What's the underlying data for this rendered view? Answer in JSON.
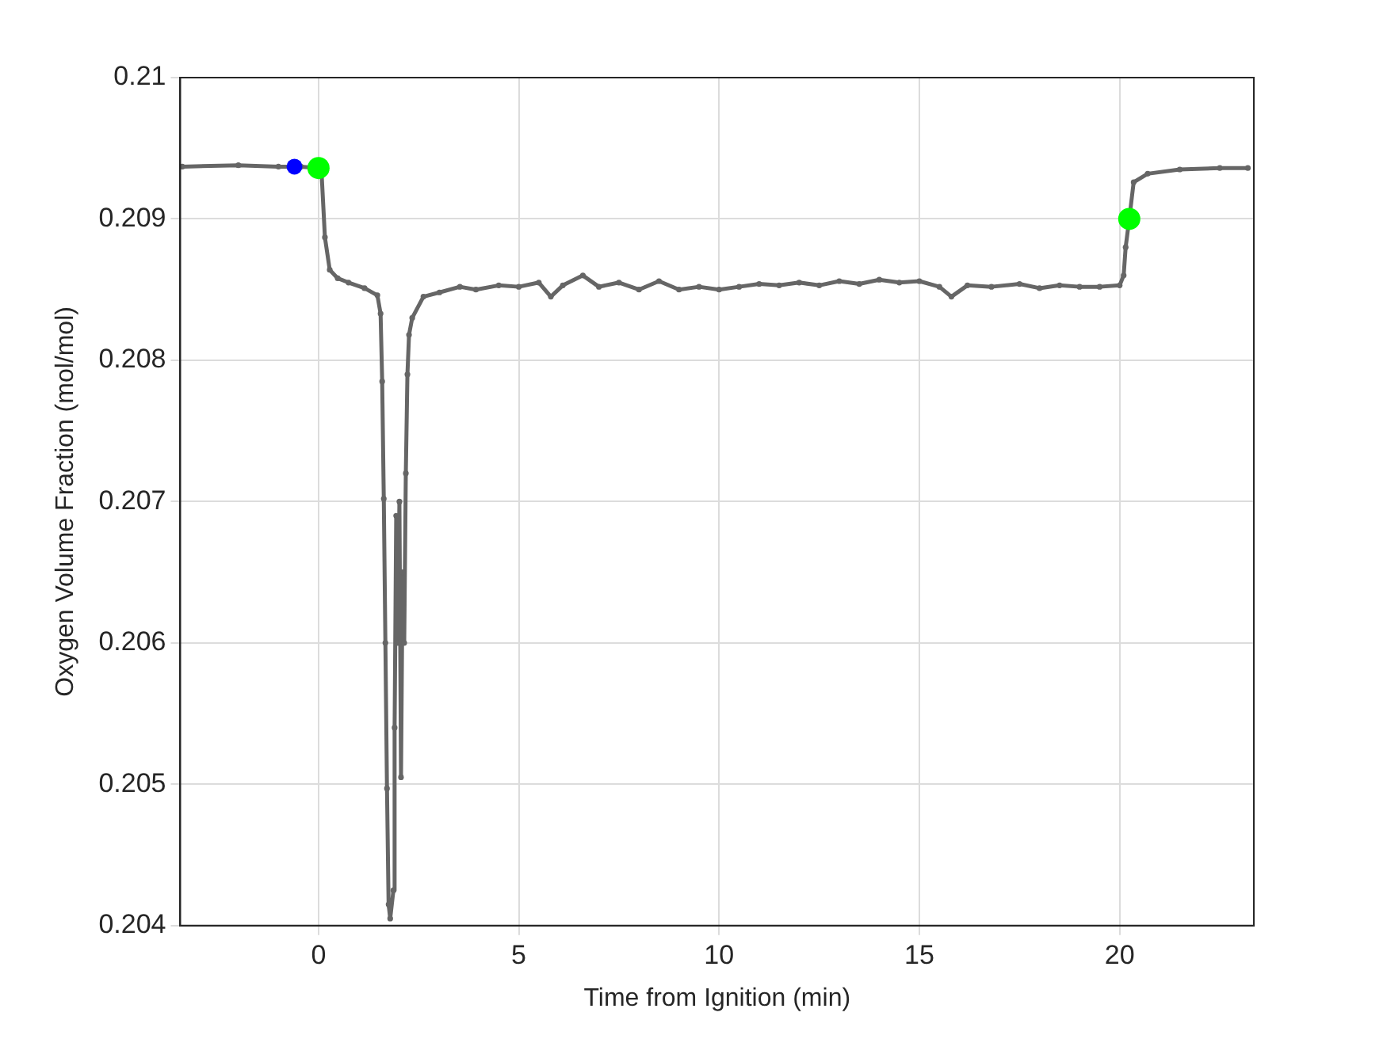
{
  "chart_data": {
    "type": "line",
    "xlabel": "Time from Ignition (min)",
    "ylabel": "Oxygen Volume Fraction (mol/mol)",
    "xlim": [
      -3.45,
      23.35
    ],
    "xticks": [
      0,
      5,
      10,
      15,
      20
    ],
    "ylim": [
      0.204,
      0.21
    ],
    "yticks": [
      0.204,
      0.205,
      0.206,
      0.207,
      0.208,
      0.209,
      0.21
    ],
    "grid": true,
    "legend": false,
    "marker": "circle",
    "line_style": "solid",
    "series": [
      {
        "type": "line",
        "color": "#666666",
        "x": [
          -3.4,
          -2.0,
          -1.0,
          -0.44,
          0,
          0.08,
          0.16,
          0.28,
          0.48,
          0.75,
          1.15,
          1.47,
          1.55,
          1.59,
          1.63,
          1.67,
          1.71,
          1.75,
          1.79,
          1.87,
          1.9,
          1.94,
          1.98,
          2.02,
          2.06,
          2.1,
          2.14,
          2.18,
          2.22,
          2.26,
          2.34,
          2.62,
          3.02,
          3.53,
          3.93,
          4.5,
          5.0,
          5.5,
          5.8,
          6.1,
          6.6,
          7.0,
          7.5,
          8.0,
          8.5,
          9.0,
          9.5,
          10.0,
          10.5,
          11.0,
          11.5,
          12.0,
          12.5,
          13.0,
          13.5,
          14.0,
          14.5,
          15.0,
          15.5,
          15.8,
          16.2,
          16.8,
          17.5,
          18.0,
          18.5,
          19.0,
          19.5,
          20.0,
          20.1,
          20.15,
          20.24,
          20.35,
          20.7,
          21.5,
          22.5,
          23.2
        ],
        "values": [
          0.20937,
          0.20938,
          0.20937,
          0.20937,
          0.20936,
          0.20931,
          0.20887,
          0.20864,
          0.20858,
          0.20855,
          0.20851,
          0.20846,
          0.20833,
          0.20785,
          0.20702,
          0.206,
          0.20497,
          0.20415,
          0.20405,
          0.20425,
          0.2054,
          0.2069,
          0.206,
          0.207,
          0.20505,
          0.2065,
          0.206,
          0.2072,
          0.2079,
          0.20818,
          0.2083,
          0.20845,
          0.20848,
          0.20852,
          0.2085,
          0.20853,
          0.20852,
          0.20855,
          0.20845,
          0.20853,
          0.2086,
          0.20852,
          0.20855,
          0.2085,
          0.20856,
          0.2085,
          0.20852,
          0.2085,
          0.20852,
          0.20854,
          0.20853,
          0.20855,
          0.20853,
          0.20856,
          0.20854,
          0.20857,
          0.20855,
          0.20856,
          0.20852,
          0.20845,
          0.20853,
          0.20852,
          0.20854,
          0.20851,
          0.20853,
          0.20852,
          0.20852,
          0.20853,
          0.2086,
          0.2088,
          0.209,
          0.20926,
          0.20932,
          0.20935,
          0.20936,
          0.20936
        ]
      },
      {
        "type": "scatter",
        "color": "#0000ff",
        "x": [
          -0.6
        ],
        "values": [
          0.20937
        ]
      },
      {
        "type": "scatter",
        "color": "#00ff00",
        "x": [
          0,
          20.24
        ],
        "values": [
          0.20936,
          0.209
        ]
      }
    ]
  }
}
